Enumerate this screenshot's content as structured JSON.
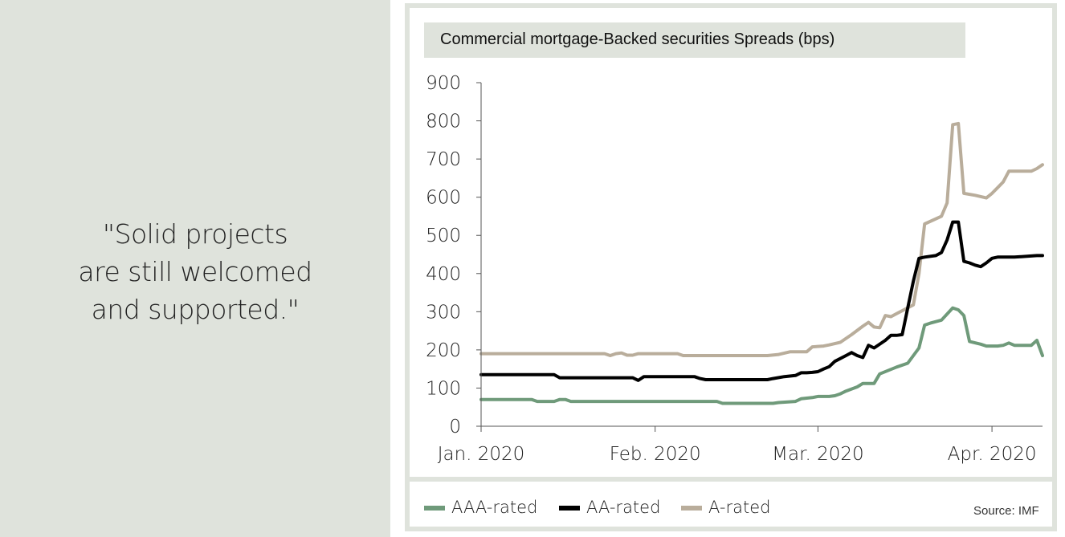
{
  "quote": {
    "lines": [
      "\"Solid projects",
      "are still welcomed",
      "and supported.\""
    ]
  },
  "colors": {
    "panel_bg": "#dfe3dc",
    "aaa": "#6f9a7a",
    "aa": "#000000",
    "a": "#b9ad9b",
    "axis": "#555555"
  },
  "source": "Source: IMF",
  "chart_data": {
    "type": "line",
    "title": "Commercial mortgage-Backed securities Spreads (bps)",
    "ylim": [
      0,
      900
    ],
    "yticks": [
      0,
      100,
      200,
      300,
      400,
      500,
      600,
      700,
      800,
      900
    ],
    "xlabels": [
      {
        "label": "Jan. 2020",
        "t": 0
      },
      {
        "label": "Feb. 2020",
        "t": 31
      },
      {
        "label": "Mar. 2020",
        "t": 60
      },
      {
        "label": "Apr. 2020",
        "t": 91
      }
    ],
    "xmax": 100,
    "grid": false,
    "legend_position": "bottom",
    "series": [
      {
        "name": "AAA-rated",
        "color": "#6f9a7a",
        "points": [
          [
            0,
            70
          ],
          [
            9,
            70
          ],
          [
            10,
            65
          ],
          [
            13,
            65
          ],
          [
            14,
            70
          ],
          [
            15,
            70
          ],
          [
            16,
            65
          ],
          [
            24,
            65
          ],
          [
            31,
            65
          ],
          [
            42,
            65
          ],
          [
            43,
            60
          ],
          [
            52,
            60
          ],
          [
            53,
            62
          ],
          [
            56,
            65
          ],
          [
            57,
            72
          ],
          [
            59,
            75
          ],
          [
            60,
            78
          ],
          [
            62,
            78
          ],
          [
            63,
            80
          ],
          [
            64,
            85
          ],
          [
            65,
            92
          ],
          [
            67,
            103
          ],
          [
            68,
            112
          ],
          [
            70,
            112
          ],
          [
            71,
            137
          ],
          [
            74,
            155
          ],
          [
            76,
            165
          ],
          [
            77,
            185
          ],
          [
            78,
            205
          ],
          [
            79,
            265
          ],
          [
            80,
            270
          ],
          [
            82,
            278
          ],
          [
            84,
            310
          ],
          [
            85,
            305
          ],
          [
            86,
            290
          ],
          [
            87,
            222
          ],
          [
            89,
            215
          ],
          [
            90,
            210
          ],
          [
            92,
            210
          ],
          [
            93,
            212
          ],
          [
            94,
            218
          ],
          [
            95,
            212
          ],
          [
            97,
            212
          ],
          [
            98,
            212
          ],
          [
            99,
            225
          ],
          [
            100,
            185
          ]
        ]
      },
      {
        "name": "AA-rated",
        "color": "#000000",
        "points": [
          [
            0,
            135
          ],
          [
            9,
            135
          ],
          [
            13,
            135
          ],
          [
            14,
            127
          ],
          [
            16,
            127
          ],
          [
            27,
            127
          ],
          [
            28,
            120
          ],
          [
            29,
            130
          ],
          [
            31,
            130
          ],
          [
            38,
            130
          ],
          [
            39,
            125
          ],
          [
            40,
            122
          ],
          [
            51,
            122
          ],
          [
            52,
            125
          ],
          [
            54,
            130
          ],
          [
            56,
            133
          ],
          [
            57,
            140
          ],
          [
            58,
            140
          ],
          [
            59,
            141
          ],
          [
            60,
            143
          ],
          [
            61,
            150
          ],
          [
            62,
            156
          ],
          [
            63,
            170
          ],
          [
            65,
            185
          ],
          [
            66,
            193
          ],
          [
            67,
            185
          ],
          [
            68,
            180
          ],
          [
            69,
            212
          ],
          [
            70,
            205
          ],
          [
            72,
            225
          ],
          [
            73,
            238
          ],
          [
            74,
            238
          ],
          [
            75,
            240
          ],
          [
            76,
            310
          ],
          [
            77,
            380
          ],
          [
            78,
            440
          ],
          [
            79,
            443
          ],
          [
            81,
            447
          ],
          [
            82,
            455
          ],
          [
            83,
            488
          ],
          [
            84,
            535
          ],
          [
            85,
            535
          ],
          [
            86,
            432
          ],
          [
            87,
            428
          ],
          [
            88,
            422
          ],
          [
            89,
            418
          ],
          [
            90,
            428
          ],
          [
            91,
            440
          ],
          [
            92,
            443
          ],
          [
            95,
            443
          ],
          [
            99,
            447
          ],
          [
            100,
            447
          ]
        ]
      },
      {
        "name": "A-rated",
        "color": "#b9ad9b",
        "points": [
          [
            0,
            190
          ],
          [
            14,
            190
          ],
          [
            22,
            190
          ],
          [
            23,
            185
          ],
          [
            24,
            190
          ],
          [
            25,
            192
          ],
          [
            26,
            186
          ],
          [
            27,
            186
          ],
          [
            28,
            190
          ],
          [
            35,
            190
          ],
          [
            36,
            185
          ],
          [
            51,
            185
          ],
          [
            53,
            188
          ],
          [
            55,
            195
          ],
          [
            58,
            195
          ],
          [
            59,
            208
          ],
          [
            61,
            210
          ],
          [
            62,
            213
          ],
          [
            64,
            220
          ],
          [
            66,
            240
          ],
          [
            68,
            262
          ],
          [
            69,
            272
          ],
          [
            70,
            260
          ],
          [
            71,
            258
          ],
          [
            72,
            290
          ],
          [
            73,
            287
          ],
          [
            74,
            295
          ],
          [
            77,
            318
          ],
          [
            78,
            400
          ],
          [
            79,
            530
          ],
          [
            82,
            550
          ],
          [
            83,
            585
          ],
          [
            84,
            790
          ],
          [
            85,
            793
          ],
          [
            86,
            610
          ],
          [
            88,
            605
          ],
          [
            90,
            598
          ],
          [
            91,
            610
          ],
          [
            92,
            625
          ],
          [
            93,
            640
          ],
          [
            94,
            668
          ],
          [
            96,
            668
          ],
          [
            98,
            668
          ],
          [
            99,
            675
          ],
          [
            100,
            685
          ]
        ]
      }
    ]
  }
}
